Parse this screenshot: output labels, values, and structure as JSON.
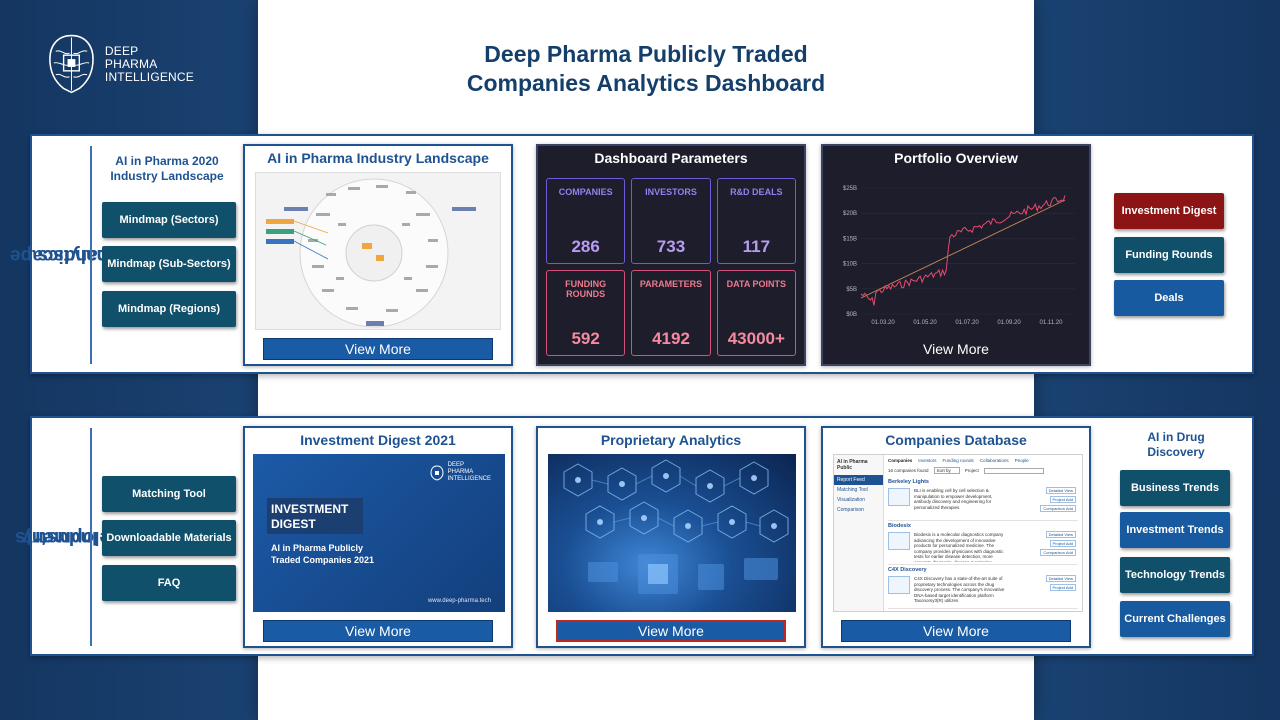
{
  "header": {
    "logo_lines": [
      "DEEP",
      "PHARMA",
      "INTELLIGENCE"
    ],
    "title_line1": "Deep Pharma Publicly Traded",
    "title_line2": "Companies Analytics Dashboard"
  },
  "landscape": {
    "label_line1": "Landscape",
    "label_line2": "Analytics",
    "heading_line1": "AI in Pharma 2020",
    "heading_line2": "Industry Landscape",
    "buttons": [
      "Mindmap (Sectors)",
      "Mindmap (Sub-Sectors)",
      "Mindmap (Regions)"
    ],
    "landscape_card": {
      "title": "AI in Pharma Industry Landscape",
      "view_more": "View More"
    },
    "parameters": {
      "title": "Dashboard Parameters",
      "items": [
        {
          "label": "COMPANIES",
          "value": "286",
          "tone": "purple"
        },
        {
          "label": "INVESTORS",
          "value": "733",
          "tone": "purple"
        },
        {
          "label": "R&D DEALS",
          "value": "117",
          "tone": "purple"
        },
        {
          "label": "FUNDING ROUNDS",
          "value": "592",
          "tone": "pink"
        },
        {
          "label": "PARAMETERS",
          "value": "4192",
          "tone": "pink"
        },
        {
          "label": "DATA POINTS",
          "value": "43000+",
          "tone": "pink"
        }
      ]
    },
    "portfolio": {
      "title": "Portfolio Overview",
      "view_more": "View More",
      "y_ticks": [
        "$25B",
        "$20B",
        "$15B",
        "$10B",
        "$5B",
        "$0B"
      ],
      "x_ticks": [
        "01.03.20",
        "01.05.20",
        "01.07.20",
        "01.09.20",
        "01.11.20"
      ]
    },
    "right_buttons": [
      {
        "label": "Investment Digest",
        "color": "red"
      },
      {
        "label": "Funding Rounds",
        "color": "teal"
      },
      {
        "label": "Deals",
        "color": "blue"
      }
    ]
  },
  "industry": {
    "label_line1": "Industry",
    "label_line2": "Developments",
    "left_buttons": [
      "Matching Tool",
      "Downloadable Materials",
      "FAQ"
    ],
    "digest_card": {
      "title": "Investment Digest 2021",
      "view_more": "View More",
      "cover_logo": [
        "DEEP",
        "PHARMA",
        "INTELLIGENCE"
      ],
      "cover_title_line1": "INVESTMENT",
      "cover_title_line2": "DIGEST",
      "cover_subtitle_line1": "AI in Pharma Publicly",
      "cover_subtitle_line2": "Traded Companies 2021",
      "cover_url": "www.deep-pharma.tech"
    },
    "analytics_card": {
      "title": "Proprietary Analytics",
      "view_more": "View More"
    },
    "database_card": {
      "title": "Companies Database",
      "view_more": "View More",
      "sidebar_header": "AI in Pharma Public",
      "sidebar_items": [
        "Report Feed",
        "Matching Tool",
        "Visualization",
        "Comparison"
      ],
      "tabs": [
        "Companies",
        "Investors",
        "Funding rounds",
        "Collaborations",
        "People"
      ],
      "found": "16 companies found",
      "sort": "Sort by",
      "project": "Project",
      "companies": [
        {
          "name": "Berkeley Lights",
          "desc": "BLI is enabling cell by cell selection & manipulation to empower development, antibody discovery and engineering for personalized therapies.",
          "actions": [
            "Detailed View",
            "Project Add",
            "Comparison Add"
          ]
        },
        {
          "name": "Biodesix",
          "desc": "Biodesix is a molecular diagnostics company advancing the development of innovative products for personalized medicine. The company provides physicians with diagnostic tests for earlier disease detection, more accurate diagnosis, disease monitoring...",
          "actions": [
            "Detailed View",
            "Project Add",
            "Comparison Add"
          ]
        },
        {
          "name": "C4X Discovery",
          "desc": "C4X Discovery has a state-of-the-art suite of proprietary technologies across the drug discovery process. The company's innovative DNA-based target identification platform Taxonomy3(R) utilizes",
          "actions": [
            "Detailed View",
            "Project Add"
          ]
        }
      ]
    },
    "heading_line1": "AI in Drug",
    "heading_line2": "Discovery",
    "right_buttons": [
      "Business Trends",
      "Investment Trends",
      "Technology Trends",
      "Current Challenges"
    ]
  },
  "colors": {
    "navy": "#163a68",
    "accent_blue": "#1f5290",
    "teal_button": "#10506b",
    "blue_button": "#175aa0",
    "red_button": "#8c1414",
    "param_purple": "#6d5bd8",
    "param_pink": "#d8507a",
    "chart_line": "#e84a6f",
    "trend_line": "#c98a5a"
  }
}
